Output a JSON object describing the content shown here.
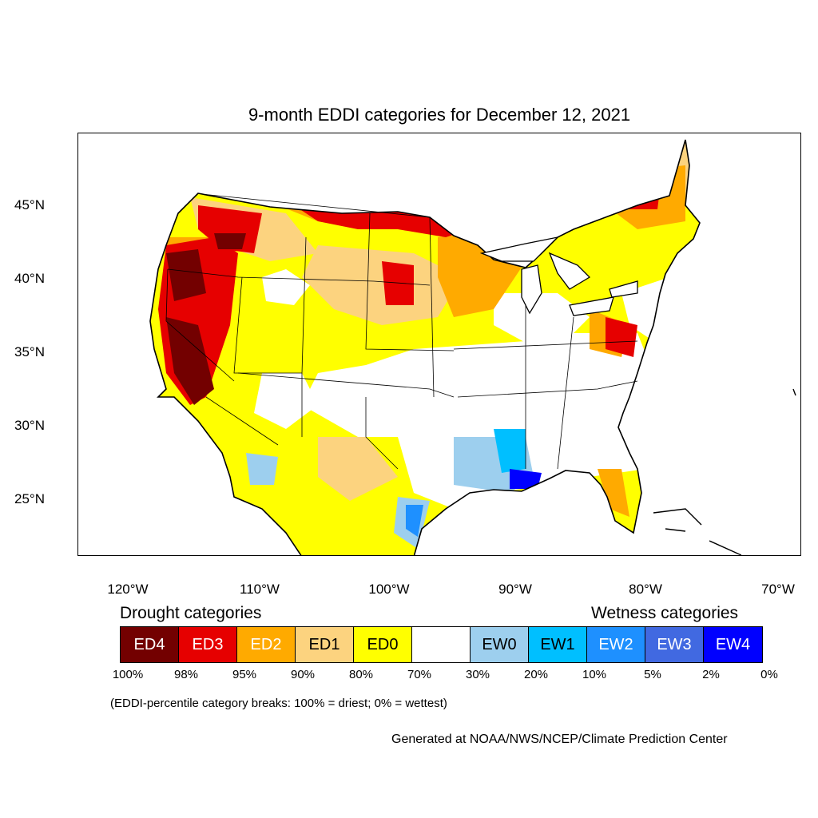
{
  "title": "9-month EDDI categories for December 12, 2021",
  "lat_labels": [
    "45°N",
    "40°N",
    "35°N",
    "30°N",
    "25°N"
  ],
  "lon_labels": [
    "120°W",
    "110°W",
    "100°W",
    "90°W",
    "80°W",
    "70°W"
  ],
  "legend": {
    "drought_heading": "Drought categories",
    "wetness_heading": "Wetness categories",
    "categories": [
      {
        "label": "ED4",
        "color": "#730000",
        "text_color": "#ffffff"
      },
      {
        "label": "ED3",
        "color": "#e60000",
        "text_color": "#ffffff"
      },
      {
        "label": "ED2",
        "color": "#ffaa00",
        "text_color": "#ffffff"
      },
      {
        "label": "ED1",
        "color": "#fcd37f",
        "text_color": "#000000"
      },
      {
        "label": "ED0",
        "color": "#ffff00",
        "text_color": "#000000"
      },
      {
        "label": "",
        "color": "#ffffff",
        "text_color": "#000000"
      },
      {
        "label": "EW0",
        "color": "#9dcfee",
        "text_color": "#000000"
      },
      {
        "label": "EW1",
        "color": "#00bfff",
        "text_color": "#000000"
      },
      {
        "label": "EW2",
        "color": "#1e90ff",
        "text_color": "#ffffff"
      },
      {
        "label": "EW3",
        "color": "#4169e1",
        "text_color": "#ffffff"
      },
      {
        "label": "EW4",
        "color": "#0000ff",
        "text_color": "#ffffff"
      }
    ],
    "breaks": [
      "100%",
      "98%",
      "95%",
      "90%",
      "80%",
      "70%",
      "30%",
      "20%",
      "10%",
      "5%",
      "2%",
      "0%"
    ]
  },
  "note": "(EDDI-percentile category breaks: 100% = driest; 0% = wettest)",
  "credit": "Generated at NOAA/NWS/NCEP/Climate Prediction Center"
}
